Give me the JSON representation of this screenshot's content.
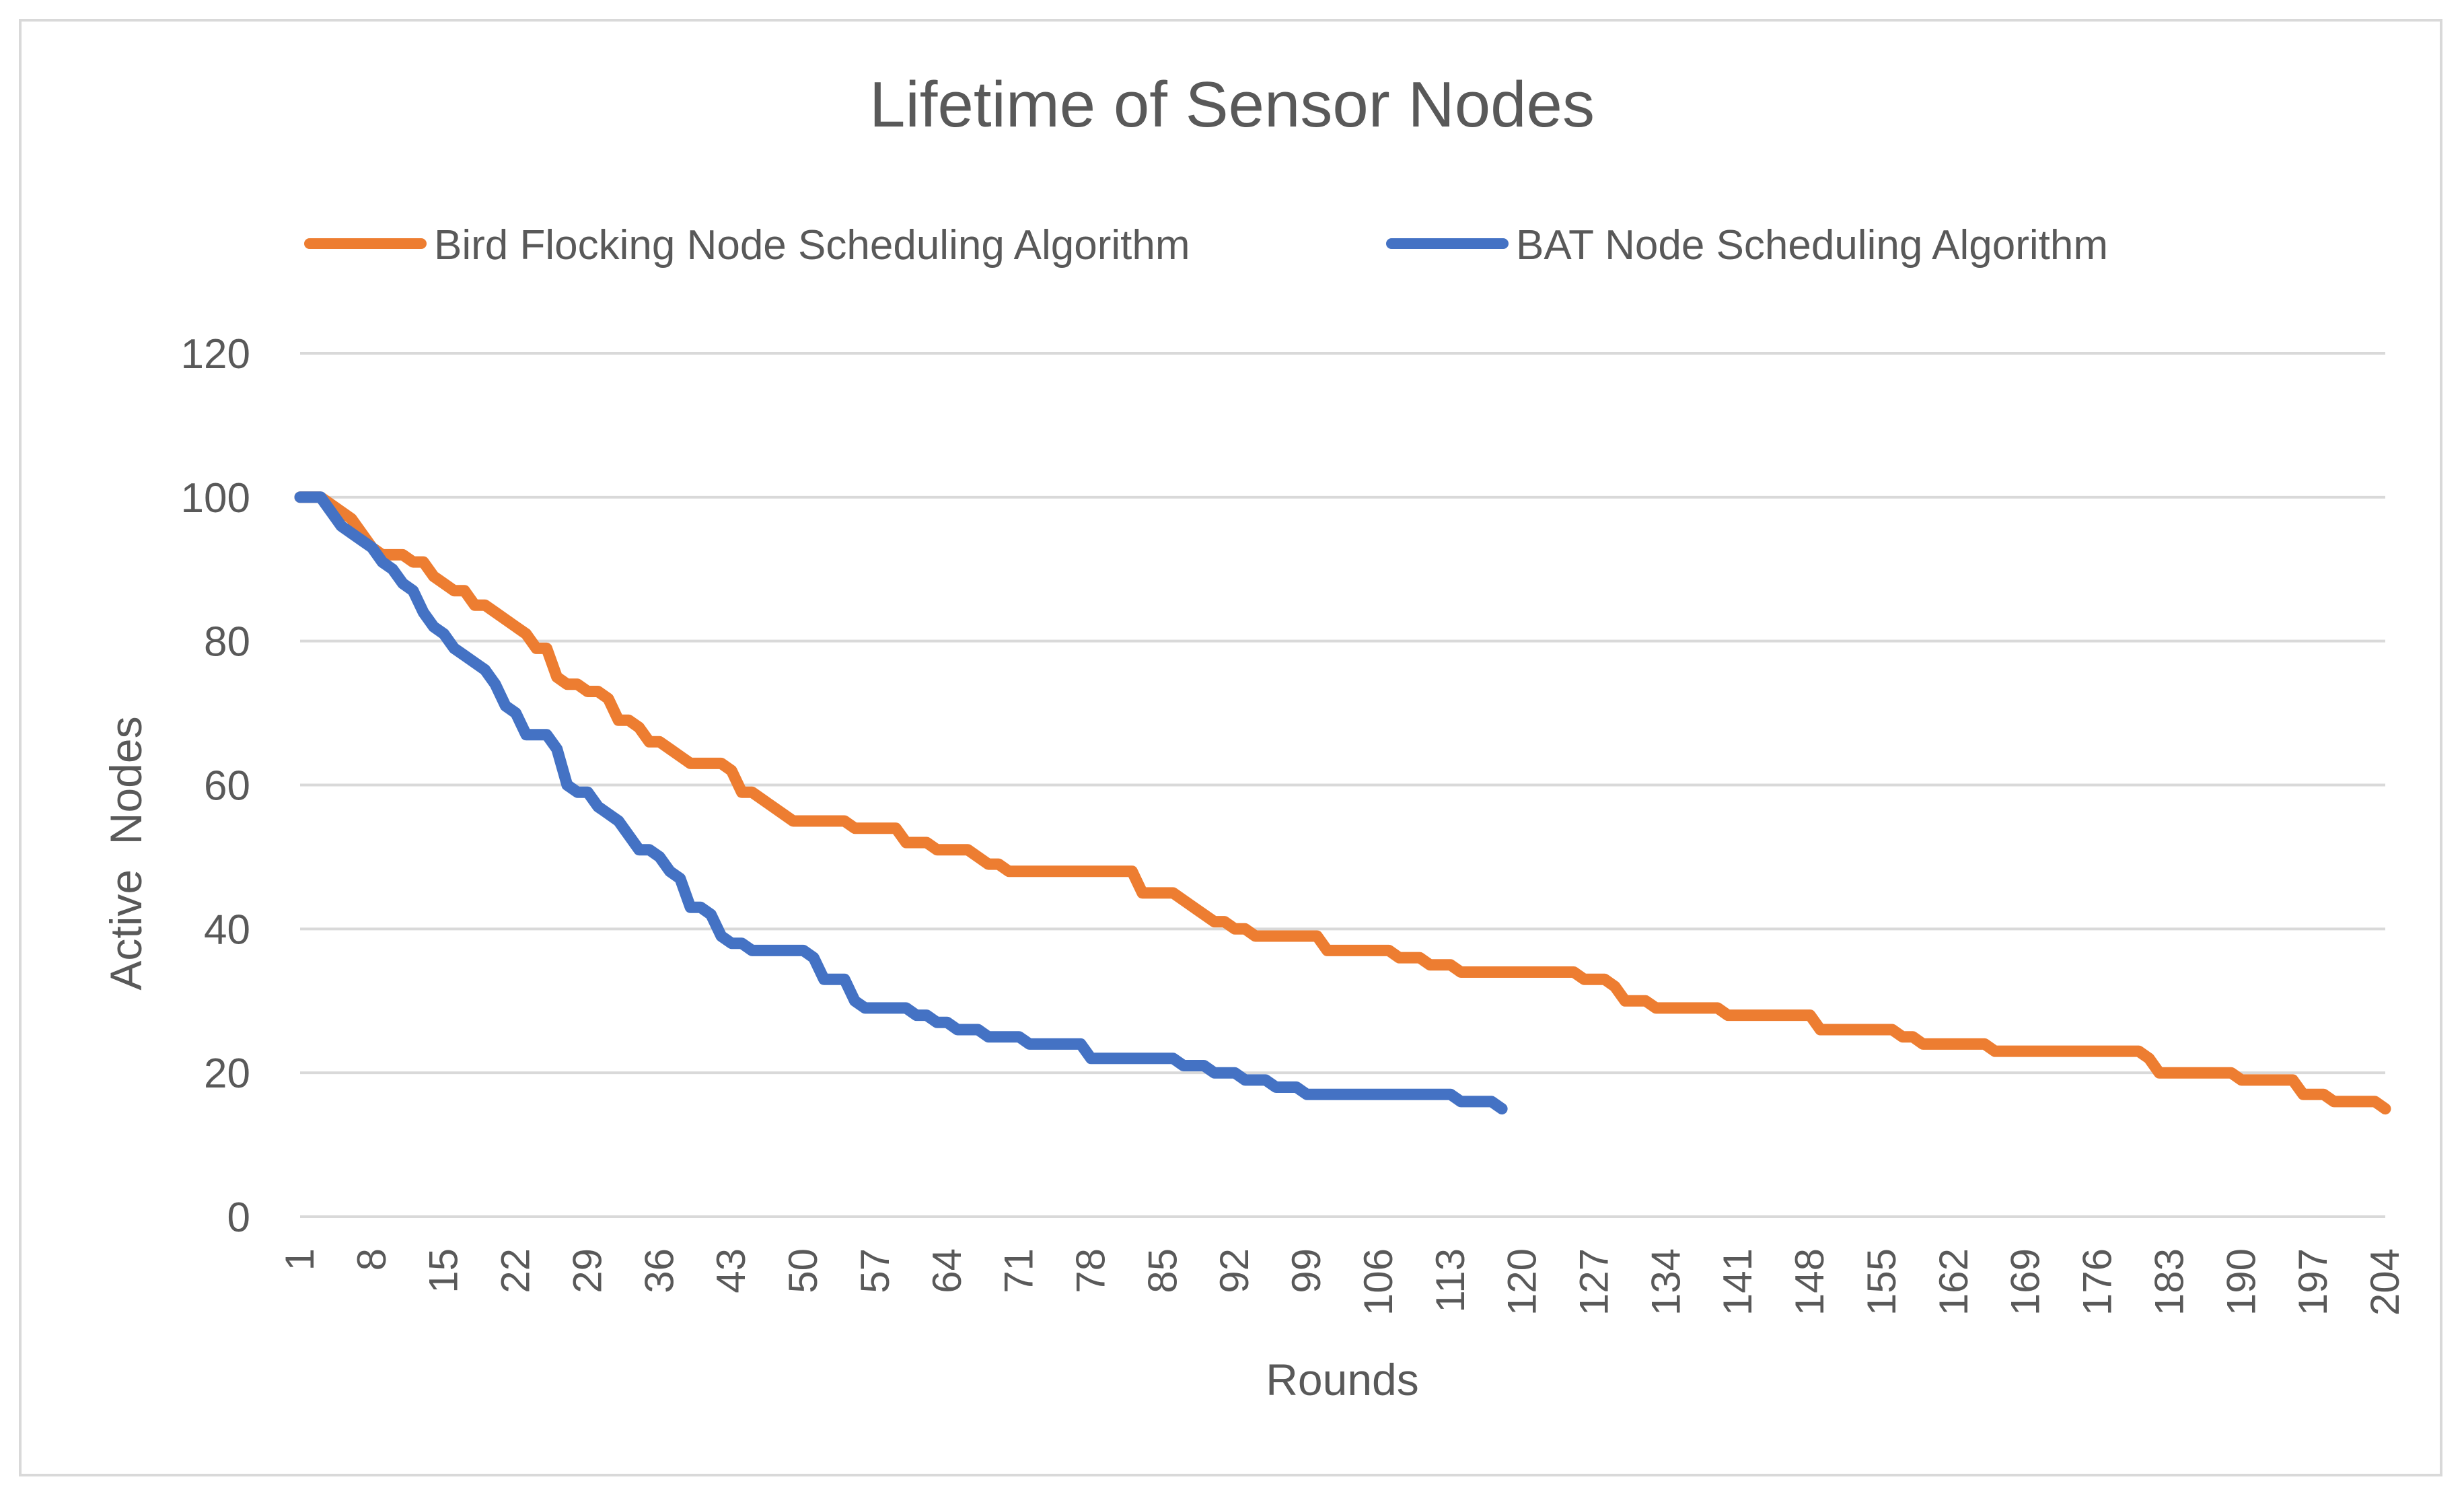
{
  "chart_data": {
    "type": "line",
    "title": "Lifetime of Sensor Nodes",
    "xlabel": "Rounds",
    "ylabel": "Active  Nodes",
    "ylim": [
      0,
      120
    ],
    "yticks": [
      0,
      20,
      40,
      60,
      80,
      100,
      120
    ],
    "xlim": [
      1,
      204
    ],
    "xticks": [
      1,
      8,
      15,
      22,
      29,
      36,
      43,
      50,
      57,
      64,
      71,
      78,
      85,
      92,
      99,
      106,
      113,
      120,
      127,
      134,
      141,
      148,
      155,
      162,
      169,
      176,
      183,
      190,
      197,
      204
    ],
    "grid": true,
    "legend_position": "top",
    "series": [
      {
        "name": "Bird Flocking Node Scheduling Algorithm",
        "color": "#ED7D31",
        "points": [
          [
            1,
            100
          ],
          [
            3,
            100
          ],
          [
            4,
            99
          ],
          [
            5,
            98
          ],
          [
            6,
            97
          ],
          [
            7,
            95
          ],
          [
            8,
            93
          ],
          [
            9,
            92
          ],
          [
            11,
            92
          ],
          [
            12,
            91
          ],
          [
            13,
            91
          ],
          [
            14,
            89
          ],
          [
            15,
            88
          ],
          [
            16,
            87
          ],
          [
            17,
            87
          ],
          [
            18,
            85
          ],
          [
            19,
            85
          ],
          [
            20,
            84
          ],
          [
            21,
            83
          ],
          [
            22,
            82
          ],
          [
            23,
            81
          ],
          [
            24,
            79
          ],
          [
            25,
            79
          ],
          [
            26,
            75
          ],
          [
            27,
            74
          ],
          [
            28,
            74
          ],
          [
            29,
            73
          ],
          [
            30,
            73
          ],
          [
            31,
            72
          ],
          [
            32,
            69
          ],
          [
            33,
            69
          ],
          [
            34,
            68
          ],
          [
            35,
            66
          ],
          [
            36,
            66
          ],
          [
            37,
            65
          ],
          [
            38,
            64
          ],
          [
            39,
            63
          ],
          [
            42,
            63
          ],
          [
            43,
            62
          ],
          [
            44,
            59
          ],
          [
            45,
            59
          ],
          [
            47,
            57
          ],
          [
            49,
            55
          ],
          [
            54,
            55
          ],
          [
            55,
            54
          ],
          [
            59,
            54
          ],
          [
            60,
            52
          ],
          [
            62,
            52
          ],
          [
            63,
            51
          ],
          [
            66,
            51
          ],
          [
            68,
            49
          ],
          [
            69,
            49
          ],
          [
            70,
            48
          ],
          [
            82,
            48
          ],
          [
            83,
            45
          ],
          [
            86,
            45
          ],
          [
            88,
            43
          ],
          [
            90,
            41
          ],
          [
            91,
            41
          ],
          [
            92,
            40
          ],
          [
            93,
            40
          ],
          [
            94,
            39
          ],
          [
            100,
            39
          ],
          [
            101,
            37
          ],
          [
            107,
            37
          ],
          [
            108,
            36
          ],
          [
            110,
            36
          ],
          [
            111,
            35
          ],
          [
            113,
            35
          ],
          [
            114,
            34
          ],
          [
            125,
            34
          ],
          [
            126,
            33
          ],
          [
            128,
            33
          ],
          [
            129,
            32
          ],
          [
            130,
            30
          ],
          [
            132,
            30
          ],
          [
            133,
            29
          ],
          [
            139,
            29
          ],
          [
            140,
            28
          ],
          [
            148,
            28
          ],
          [
            149,
            26
          ],
          [
            156,
            26
          ],
          [
            157,
            25
          ],
          [
            158,
            25
          ],
          [
            159,
            24
          ],
          [
            165,
            24
          ],
          [
            166,
            23
          ],
          [
            180,
            23
          ],
          [
            181,
            22
          ],
          [
            182,
            20
          ],
          [
            189,
            20
          ],
          [
            190,
            19
          ],
          [
            195,
            19
          ],
          [
            196,
            17
          ],
          [
            198,
            17
          ],
          [
            199,
            16
          ],
          [
            203,
            16
          ],
          [
            204,
            15
          ]
        ]
      },
      {
        "name": "BAT Node Scheduling Algorithm",
        "color": "#4472C4",
        "points": [
          [
            1,
            100
          ],
          [
            3,
            100
          ],
          [
            4,
            98
          ],
          [
            5,
            96
          ],
          [
            6,
            95
          ],
          [
            7,
            94
          ],
          [
            8,
            93
          ],
          [
            9,
            91
          ],
          [
            10,
            90
          ],
          [
            11,
            88
          ],
          [
            12,
            87
          ],
          [
            13,
            84
          ],
          [
            14,
            82
          ],
          [
            15,
            81
          ],
          [
            16,
            79
          ],
          [
            17,
            78
          ],
          [
            18,
            77
          ],
          [
            19,
            76
          ],
          [
            20,
            74
          ],
          [
            21,
            71
          ],
          [
            22,
            70
          ],
          [
            23,
            67
          ],
          [
            25,
            67
          ],
          [
            26,
            65
          ],
          [
            27,
            60
          ],
          [
            28,
            59
          ],
          [
            29,
            59
          ],
          [
            30,
            57
          ],
          [
            31,
            56
          ],
          [
            32,
            55
          ],
          [
            33,
            53
          ],
          [
            34,
            51
          ],
          [
            35,
            51
          ],
          [
            36,
            50
          ],
          [
            37,
            48
          ],
          [
            38,
            47
          ],
          [
            39,
            43
          ],
          [
            40,
            43
          ],
          [
            41,
            42
          ],
          [
            42,
            39
          ],
          [
            43,
            38
          ],
          [
            44,
            38
          ],
          [
            45,
            37
          ],
          [
            50,
            37
          ],
          [
            51,
            36
          ],
          [
            52,
            33
          ],
          [
            54,
            33
          ],
          [
            55,
            30
          ],
          [
            56,
            29
          ],
          [
            60,
            29
          ],
          [
            61,
            28
          ],
          [
            62,
            28
          ],
          [
            63,
            27
          ],
          [
            64,
            27
          ],
          [
            65,
            26
          ],
          [
            67,
            26
          ],
          [
            68,
            25
          ],
          [
            71,
            25
          ],
          [
            72,
            24
          ],
          [
            77,
            24
          ],
          [
            78,
            22
          ],
          [
            86,
            22
          ],
          [
            87,
            21
          ],
          [
            89,
            21
          ],
          [
            90,
            20
          ],
          [
            92,
            20
          ],
          [
            93,
            19
          ],
          [
            95,
            19
          ],
          [
            96,
            18
          ],
          [
            98,
            18
          ],
          [
            99,
            17
          ],
          [
            113,
            17
          ],
          [
            114,
            16
          ],
          [
            117,
            16
          ],
          [
            118,
            15
          ]
        ]
      }
    ]
  }
}
